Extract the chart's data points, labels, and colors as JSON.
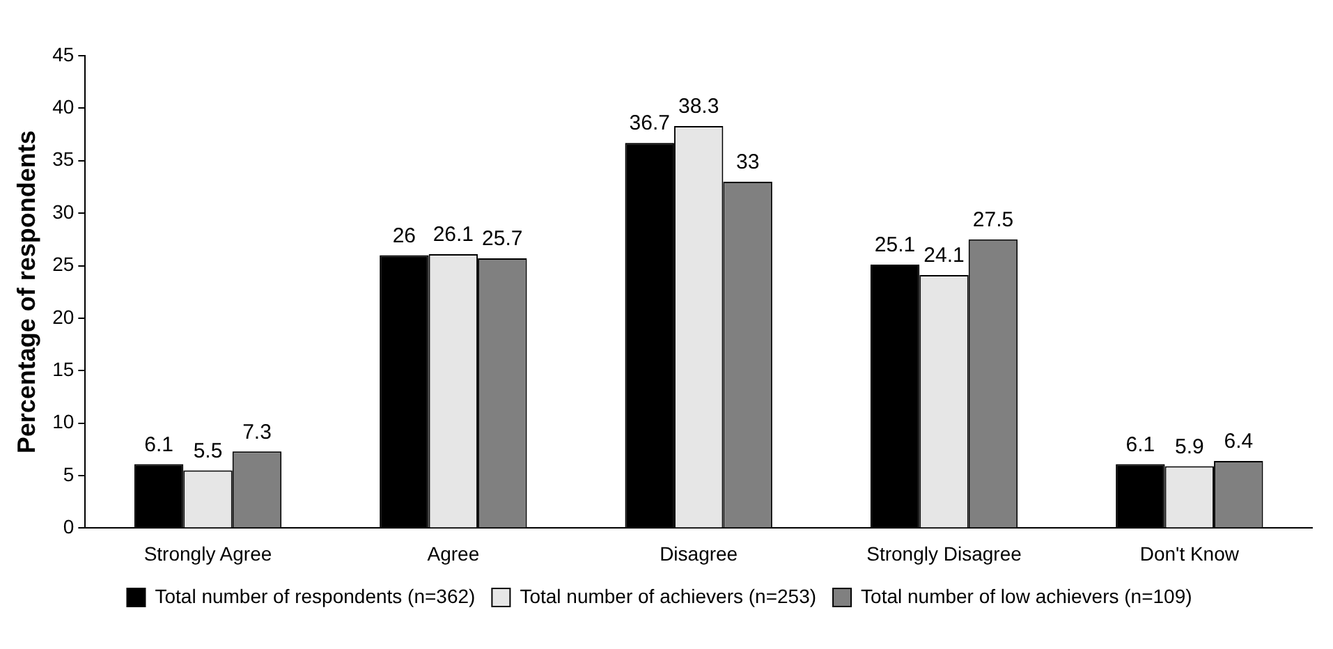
{
  "chart_data": {
    "type": "bar",
    "ylabel": "Percentage of respondents",
    "categories": [
      "Strongly Agree",
      "Agree",
      "Disagree",
      "Strongly Disagree",
      "Don't Know"
    ],
    "series": [
      {
        "name": "Total number of respondents (n=362)",
        "color": "#000000",
        "values": [
          6.1,
          26,
          36.7,
          25.1,
          6.1
        ]
      },
      {
        "name": "Total number of achievers (n=253)",
        "color": "#e6e6e6",
        "values": [
          5.5,
          26.1,
          38.3,
          24.1,
          5.9
        ]
      },
      {
        "name": "Total number of low achievers (n=109)",
        "color": "#808080",
        "values": [
          7.3,
          25.7,
          33,
          27.5,
          6.4
        ]
      }
    ],
    "ylim": [
      0,
      45
    ],
    "yticks": [
      0,
      5,
      10,
      15,
      20,
      25,
      30,
      35,
      40,
      45
    ],
    "grid": false,
    "legend": "bottom",
    "data_labels": true
  }
}
